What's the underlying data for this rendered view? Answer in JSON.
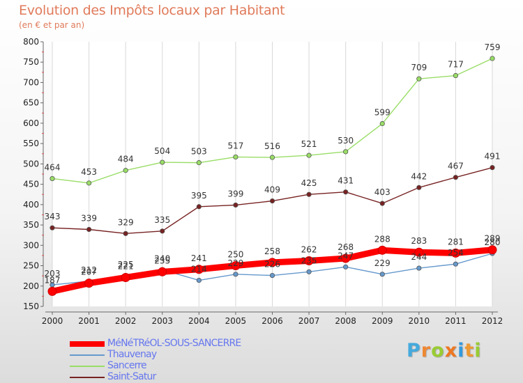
{
  "header": {
    "title": "Evolution des Impôts locaux par Habitant",
    "subtitle": "(en € et par an)"
  },
  "chart_data": {
    "type": "line",
    "title": "Evolution des Impôts locaux par Habitant",
    "subtitle": "(en € et par an)",
    "xlabel": "",
    "ylabel": "",
    "x": [
      "2000",
      "2001",
      "2002",
      "2003",
      "2004",
      "2005",
      "2006",
      "2007",
      "2008",
      "2009",
      "2010",
      "2011",
      "2012"
    ],
    "ylim": [
      150,
      800
    ],
    "yticks": [
      150,
      200,
      250,
      300,
      350,
      400,
      450,
      500,
      550,
      600,
      650,
      700,
      750,
      800
    ],
    "grid": "vertical",
    "legend_position": "bottom-left",
    "series": [
      {
        "name": "MéNéTRéOL-SOUS-SANCERRE",
        "color": "#ff0000",
        "values": [
          187,
          207,
          221,
          235,
          241,
          250,
          258,
          262,
          268,
          288,
          283,
          281,
          289
        ]
      },
      {
        "name": "Thauvenay",
        "color": "#6699cc",
        "values": [
          203,
          212,
          225,
          240,
          214,
          229,
          226,
          235,
          247,
          229,
          244,
          254,
          280
        ]
      },
      {
        "name": "Sancerre",
        "color": "#99dd66",
        "values": [
          464,
          453,
          484,
          504,
          503,
          517,
          516,
          521,
          530,
          599,
          709,
          717,
          759
        ]
      },
      {
        "name": "Saint-Satur",
        "color": "#772222",
        "values": [
          343,
          339,
          329,
          335,
          395,
          399,
          409,
          425,
          431,
          403,
          442,
          467,
          491
        ]
      }
    ],
    "data_labels": [
      [
        "187",
        "207",
        "221",
        "235",
        "241",
        "250",
        "258",
        "262",
        "268",
        "288",
        "283",
        "281",
        "289"
      ],
      [
        "203",
        "212",
        "225",
        "240",
        "214",
        "229",
        "226",
        "235",
        "247",
        "229",
        "244",
        "254",
        "280"
      ],
      [
        "464",
        "453",
        "484",
        "504",
        "503",
        "517",
        "516",
        "521",
        "530",
        "599",
        "709",
        "717",
        "759"
      ],
      [
        "343",
        "339",
        "329",
        "335",
        "395",
        "399",
        "409",
        "425",
        "431",
        "403",
        "442",
        "467",
        "491"
      ]
    ]
  },
  "legend": {
    "items": [
      {
        "label": "MéNéTRéOL-SOUS-SANCERRE",
        "color": "#ff0000",
        "text_color": "#6677ee"
      },
      {
        "label": "Thauvenay",
        "color": "#6699cc",
        "text_color": "#6677ee"
      },
      {
        "label": "Sancerre",
        "color": "#99dd66",
        "text_color": "#6677ee"
      },
      {
        "label": "Saint-Satur",
        "color": "#772222",
        "text_color": "#6677ee"
      }
    ]
  },
  "logo": {
    "letters": [
      "P",
      "r",
      "o",
      "x",
      "i",
      "t",
      "i"
    ],
    "colors": [
      "#44aadd",
      "#ee8833",
      "#99cc33",
      "#ee7722",
      "#3399dd",
      "#ee9933",
      "#99cc33"
    ]
  }
}
